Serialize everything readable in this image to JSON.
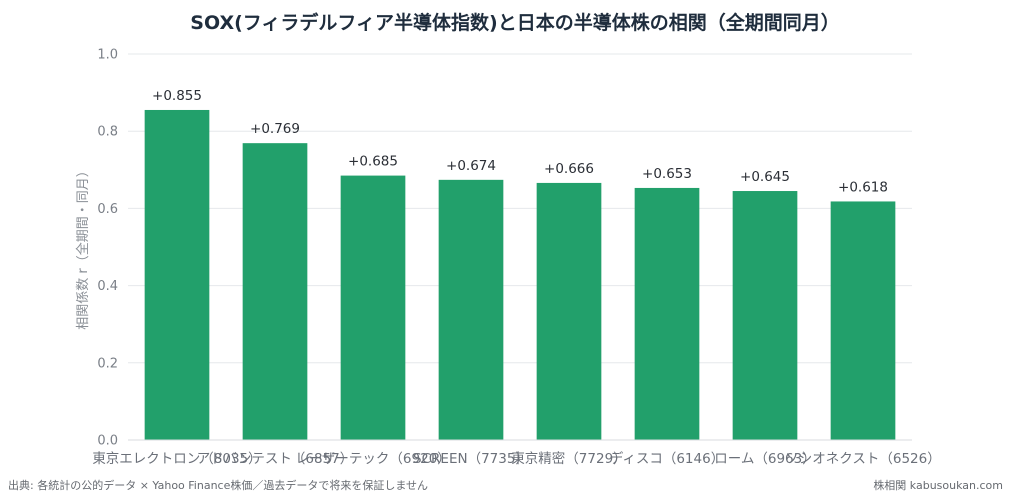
{
  "chart_data": {
    "type": "bar",
    "title": "SOX(フィラデルフィア半導体指数)と日本の半導体株の相関（全期間同月）",
    "ylabel": "相関係数 r（全期間・同月）",
    "xlabel": "",
    "ylim": [
      0,
      1
    ],
    "yticks": [
      "0.0",
      "0.2",
      "0.4",
      "0.6",
      "0.8",
      "1.0"
    ],
    "ytick_values": [
      0,
      0.2,
      0.4,
      0.6,
      0.8,
      1.0
    ],
    "grid": true,
    "bar_color": "#22a06b",
    "categories": [
      "東京エレクトロン（8035）",
      "アドバンテスト（6857）",
      "レーザーテック（6920）",
      "SCREEN（7735）",
      "東京精密（7729）",
      "ディスコ（6146）",
      "ローム（6963）",
      "ソシオネクスト（6526）"
    ],
    "values": [
      0.855,
      0.769,
      0.685,
      0.674,
      0.666,
      0.653,
      0.645,
      0.618
    ],
    "value_labels": [
      "+0.855",
      "+0.769",
      "+0.685",
      "+0.674",
      "+0.666",
      "+0.653",
      "+0.645",
      "+0.618"
    ]
  },
  "footer": {
    "source": "出典: 各統計の公的データ × Yahoo Finance株価／過去データで将来を保証しません",
    "brand": "株相関 kabusoukan.com"
  }
}
